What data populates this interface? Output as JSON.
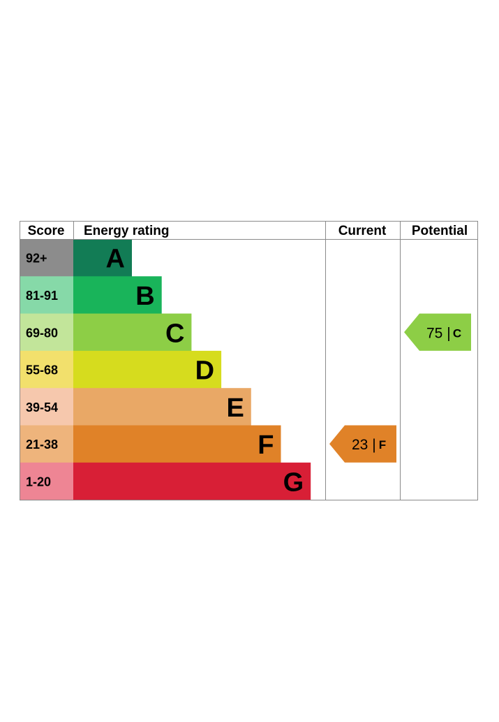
{
  "chart_data": {
    "type": "bar",
    "headers": {
      "score": "Score",
      "rating": "Energy rating",
      "current": "Current",
      "potential": "Potential"
    },
    "bands": [
      {
        "letter": "A",
        "score": "92+",
        "color": "#127c55",
        "score_color": "#8c8c8c"
      },
      {
        "letter": "B",
        "score": "81-91",
        "color": "#19b45a",
        "score_color": "#86d9a8"
      },
      {
        "letter": "C",
        "score": "69-80",
        "color": "#8dce46",
        "score_color": "#c2e59a"
      },
      {
        "letter": "D",
        "score": "55-68",
        "color": "#d6dc1e",
        "score_color": "#f2e06c"
      },
      {
        "letter": "E",
        "score": "39-54",
        "color": "#e9a866",
        "score_color": "#f6c8ad"
      },
      {
        "letter": "F",
        "score": "21-38",
        "color": "#e08228",
        "score_color": "#eeb47c"
      },
      {
        "letter": "G",
        "score": "1-20",
        "color": "#d81f36",
        "score_color": "#ee8594"
      }
    ],
    "current": {
      "value": "23",
      "letter": "F",
      "color": "#e08228"
    },
    "potential": {
      "value": "75",
      "letter": "C",
      "color": "#8dce46"
    }
  }
}
